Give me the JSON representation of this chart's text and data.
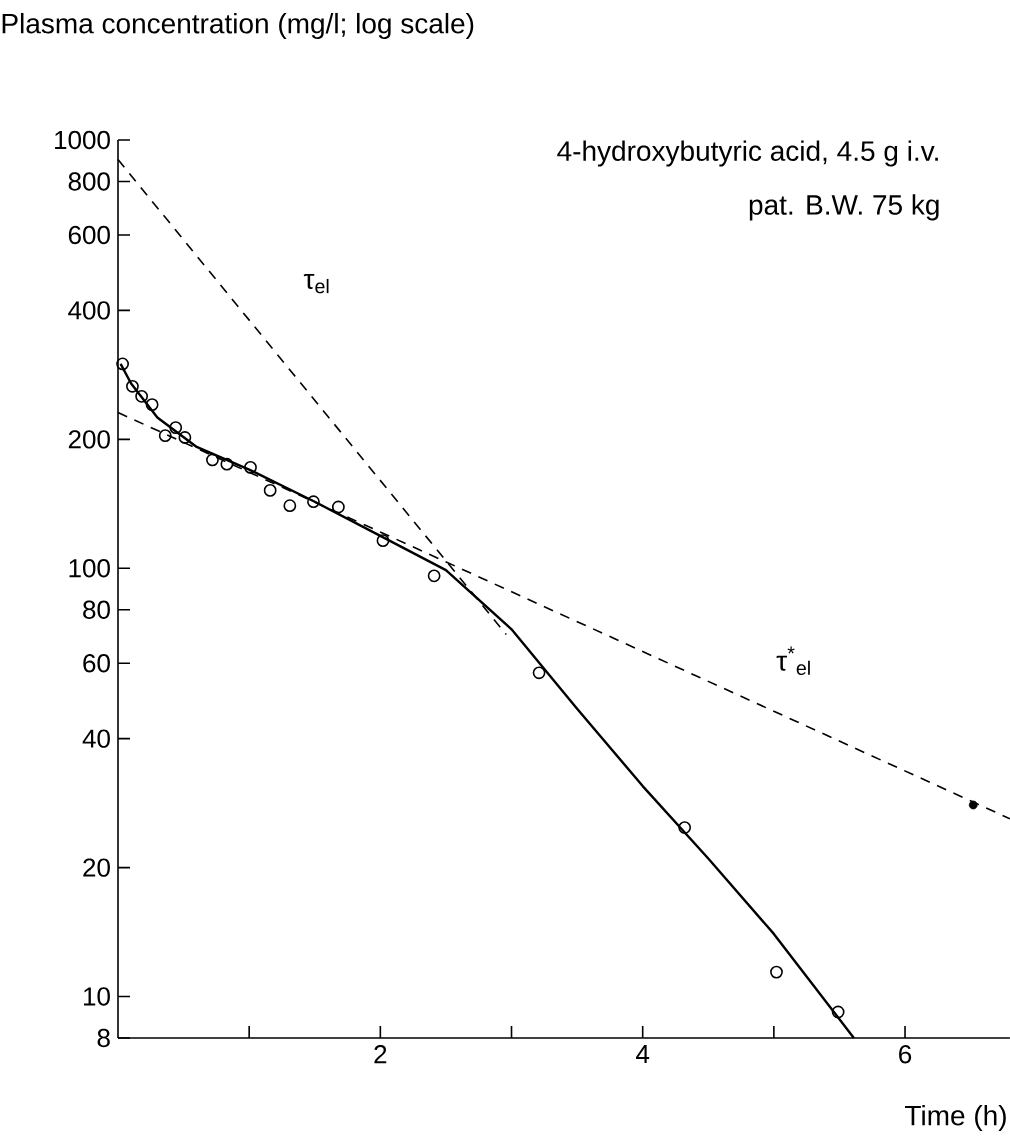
{
  "chart_data": {
    "type": "line",
    "ylabel": "Plasma concentration (mg/l; log scale)",
    "xlabel": "Time (h)",
    "log": "y",
    "xlim": [
      0,
      6.8
    ],
    "ylim": [
      8,
      1000
    ],
    "xticks": [
      {
        "value": 1,
        "label": null
      },
      2,
      {
        "value": 3,
        "label": null
      },
      4,
      {
        "value": 5,
        "label": null
      },
      6
    ],
    "yticks": [
      8,
      10,
      20,
      40,
      60,
      80,
      100,
      200,
      400,
      600,
      800,
      1000
    ],
    "grid": false,
    "annotations": [
      "4-hydroxybutyric acid, 4.5 g i.v.",
      "pat. B.W. 75 kg",
      "τ$_{el}$",
      "τ$^{*}$$_{el}$"
    ],
    "series": [
      {
        "type": "scatter",
        "color": "#000000",
        "marker": "circle",
        "x": [
          0.035,
          0.11,
          0.18,
          0.26,
          0.36,
          0.44,
          0.51,
          0.72,
          0.83,
          1.01,
          1.16,
          1.31,
          1.49,
          1.68,
          2.02,
          2.41,
          3.21,
          4.32,
          5.02,
          5.49
        ],
        "values": [
          300,
          266,
          252,
          241,
          204,
          213,
          202,
          179,
          175,
          172,
          152,
          140,
          143,
          139,
          116,
          96,
          57,
          24.8,
          11.4,
          9.2
        ]
      },
      {
        "color": "#000000",
        "line_style": "solid",
        "marker": "none",
        "x": [
          0.02,
          0.1,
          0.3,
          0.6,
          1.0,
          1.5,
          2.0,
          2.5,
          3.0,
          3.5,
          4.0,
          4.5,
          5.0,
          5.61
        ],
        "values": [
          300,
          270,
          225,
          192,
          170,
          143,
          119,
          99,
          72,
          47,
          31,
          21,
          14,
          8
        ]
      },
      {
        "color": "#000000",
        "line_style": "dashed",
        "marker": "none",
        "x": [
          0,
          2.96
        ],
        "values": [
          900,
          70
        ]
      },
      {
        "color": "#000000",
        "line_style": "dashed",
        "marker": "none",
        "x": [
          0,
          6.8
        ],
        "values": [
          231,
          26
        ]
      },
      {
        "type": "scatter",
        "color": "#000000",
        "marker": "dot",
        "x": [
          6.52
        ],
        "values": [
          28
        ]
      }
    ]
  }
}
